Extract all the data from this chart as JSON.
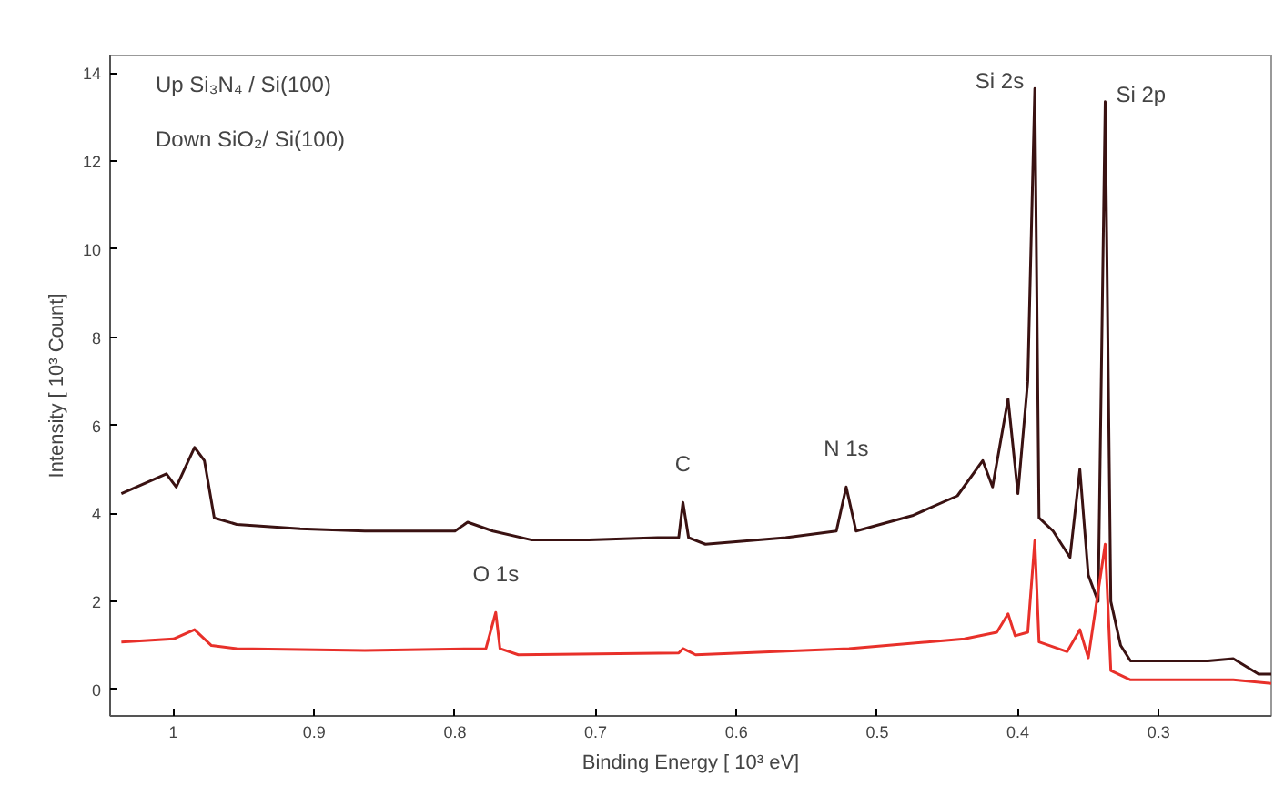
{
  "chart_data": {
    "type": "line",
    "xlabel": "Binding Energy [ 10³ eV]",
    "ylabel": "Intensity [ 10³ Count]",
    "xlim": [
      1.045,
      0.22
    ],
    "ylim": [
      -0.6,
      14.4
    ],
    "xticks": [
      1,
      0.9,
      0.8,
      0.7,
      0.6,
      0.5,
      0.4,
      0.3
    ],
    "yticks": [
      0,
      2,
      4,
      6,
      8,
      10,
      12,
      14
    ],
    "grid": false,
    "marker": "none",
    "line_style": "solid",
    "series": [
      {
        "color": "#3a1212",
        "x": [
          1.037,
          1.005,
          0.998,
          0.985,
          0.978,
          0.971,
          0.955,
          0.91,
          0.864,
          0.8,
          0.791,
          0.773,
          0.746,
          0.705,
          0.656,
          0.641,
          0.638,
          0.634,
          0.622,
          0.565,
          0.529,
          0.522,
          0.515,
          0.475,
          0.443,
          0.425,
          0.418,
          0.407,
          0.4,
          0.393,
          0.388,
          0.385,
          0.375,
          0.363,
          0.356,
          0.35,
          0.343,
          0.338,
          0.334,
          0.327,
          0.32,
          0.265,
          0.247,
          0.229,
          0.22
        ],
        "values": [
          4.45,
          4.9,
          4.6,
          5.5,
          5.2,
          3.9,
          3.75,
          3.65,
          3.6,
          3.6,
          3.8,
          3.6,
          3.4,
          3.4,
          3.45,
          3.45,
          4.25,
          3.45,
          3.3,
          3.45,
          3.6,
          4.6,
          3.6,
          3.95,
          4.4,
          5.2,
          4.6,
          6.6,
          4.45,
          7.0,
          13.65,
          3.9,
          3.6,
          3.0,
          5.0,
          2.6,
          2.0,
          13.35,
          2.0,
          1.0,
          0.65,
          0.65,
          0.7,
          0.35,
          0.35
        ]
      },
      {
        "color": "#e8302a",
        "x": [
          1.037,
          1.0,
          0.985,
          0.973,
          0.955,
          0.864,
          0.778,
          0.771,
          0.768,
          0.755,
          0.641,
          0.638,
          0.629,
          0.52,
          0.438,
          0.415,
          0.407,
          0.402,
          0.393,
          0.388,
          0.385,
          0.365,
          0.356,
          0.35,
          0.338,
          0.334,
          0.32,
          0.247,
          0.22
        ],
        "values": [
          1.08,
          1.15,
          1.36,
          1.0,
          0.93,
          0.89,
          0.93,
          1.75,
          0.93,
          0.79,
          0.83,
          0.93,
          0.79,
          0.93,
          1.15,
          1.3,
          1.72,
          1.22,
          1.3,
          3.38,
          1.08,
          0.86,
          1.36,
          0.72,
          3.3,
          0.43,
          0.22,
          0.22,
          0.14
        ]
      }
    ],
    "annotations": [
      "Up Si₃N₄ / Si(100)",
      "Down SiO₂/ Si(100)",
      {
        "text": "Si 2s",
        "x": 0.388,
        "y": 13.65
      },
      {
        "text": "Si 2p",
        "x": 0.338,
        "y": 13.35
      },
      {
        "text": "C",
        "x": 0.638,
        "y": 4.25
      },
      {
        "text": "N 1s",
        "x": 0.522,
        "y": 4.6
      },
      {
        "text": "O 1s",
        "x": 0.771,
        "y": 1.75
      }
    ]
  }
}
